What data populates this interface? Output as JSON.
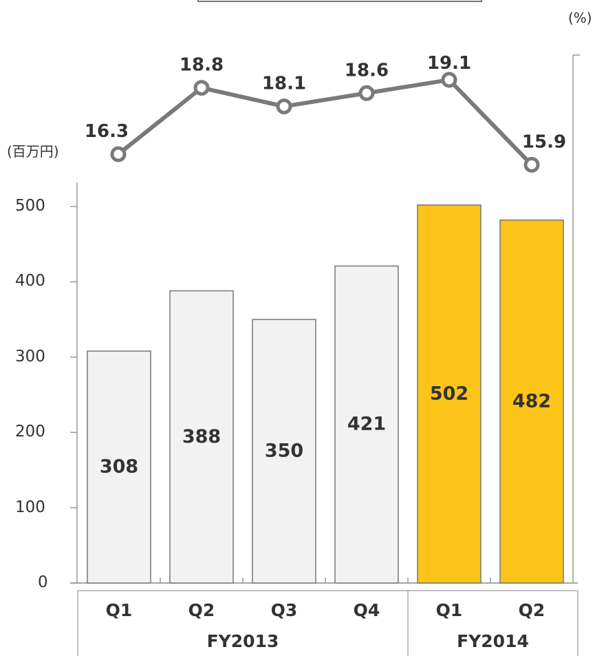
{
  "units": {
    "left": "(百万円)",
    "right": "(%)"
  },
  "chart_data": {
    "type": "bar",
    "categories": [
      "Q1",
      "Q2",
      "Q3",
      "Q4",
      "Q1",
      "Q2"
    ],
    "groups": [
      {
        "label": "FY2013",
        "categories": [
          "Q1",
          "Q2",
          "Q3",
          "Q4"
        ]
      },
      {
        "label": "FY2014",
        "categories": [
          "Q1",
          "Q2"
        ]
      }
    ],
    "series": [
      {
        "type": "bar",
        "values": [
          308,
          388,
          350,
          421,
          502,
          482
        ]
      },
      {
        "type": "line",
        "axis": "right",
        "values": [
          16.3,
          18.8,
          18.1,
          18.6,
          19.1,
          15.9
        ]
      }
    ],
    "bar_labels": [
      "308",
      "388",
      "350",
      "421",
      "502",
      "482"
    ],
    "line_labels": [
      "16.3",
      "18.8",
      "18.1",
      "18.6",
      "19.1",
      "15.9"
    ],
    "y_ticks": [
      "500",
      "400",
      "300",
      "200",
      "100",
      "0"
    ],
    "ylim": [
      0,
      500
    ],
    "colors": {
      "fy2013_bar": "#f2f2f2",
      "fy2014_bar": "#fcc419",
      "line": "#7a7a7a",
      "text": "#333333"
    }
  }
}
